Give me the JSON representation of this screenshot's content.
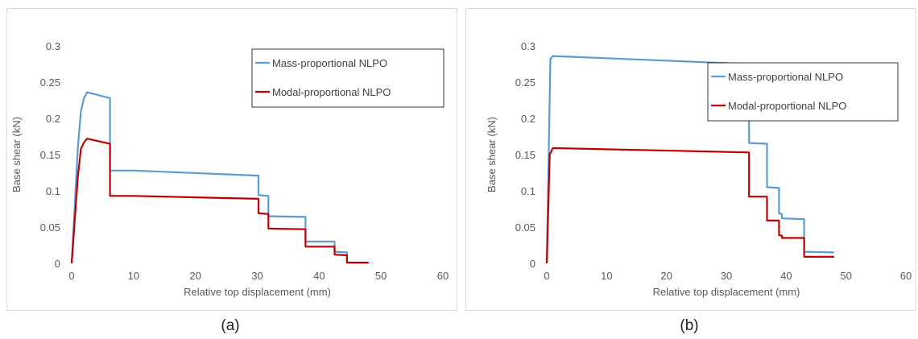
{
  "colors": {
    "mass": "#5b9bd5",
    "modal": "#c00000",
    "grid": "#d9d9d9",
    "border": "#d9d9d9"
  },
  "chart_data": [
    {
      "type": "line",
      "caption": "(a)",
      "xlabel": "Relative top displacement (mm)",
      "ylabel": "Base shear (kN)",
      "xlim": [
        0,
        60
      ],
      "ylim": [
        0,
        0.3
      ],
      "xticks": [
        "0",
        "10",
        "20",
        "30",
        "40",
        "50",
        "60"
      ],
      "yticks": [
        "0",
        "0.05",
        "0.1",
        "0.15",
        "0.2",
        "0.25",
        "0.3"
      ],
      "grid": false,
      "legend_position": "top-right",
      "series": [
        {
          "name": "Mass-proportional NLPO",
          "color": "#5b9bd5",
          "x": [
            0,
            1.0,
            1.5,
            2.0,
            2.5,
            6.2,
            6.2,
            10,
            30.2,
            30.2,
            31.8,
            31.8,
            37.8,
            37.8,
            42.5,
            42.5,
            44.5,
            44.5,
            48
          ],
          "y": [
            0,
            0.16,
            0.21,
            0.228,
            0.236,
            0.228,
            0.128,
            0.128,
            0.121,
            0.094,
            0.093,
            0.065,
            0.064,
            0.03,
            0.03,
            0.016,
            0.015,
            0.001,
            0.001
          ]
        },
        {
          "name": "Modal-proportional NLPO",
          "color": "#c00000",
          "x": [
            0,
            1.0,
            1.5,
            2.0,
            2.5,
            6.2,
            6.2,
            10,
            30.2,
            30.2,
            31.8,
            31.8,
            37.8,
            37.8,
            42.5,
            42.5,
            44.5,
            44.5,
            48
          ],
          "y": [
            0,
            0.12,
            0.158,
            0.167,
            0.172,
            0.165,
            0.093,
            0.093,
            0.089,
            0.069,
            0.068,
            0.048,
            0.047,
            0.023,
            0.023,
            0.012,
            0.011,
            0.001,
            0.001
          ]
        }
      ]
    },
    {
      "type": "line",
      "caption": "(b)",
      "xlabel": "Relative top displacement (mm)",
      "ylabel": "Base shear (kN)",
      "xlim": [
        0,
        60
      ],
      "ylim": [
        0,
        0.3
      ],
      "xticks": [
        "0",
        "10",
        "20",
        "30",
        "40",
        "50",
        "60"
      ],
      "yticks": [
        "0",
        "0.05",
        "0.1",
        "0.15",
        "0.2",
        "0.25",
        "0.3"
      ],
      "grid": false,
      "legend_position": "top-right",
      "series": [
        {
          "name": "Mass-proportional NLPO",
          "color": "#5b9bd5",
          "x": [
            0,
            0.6,
            1.0,
            33.8,
            33.8,
            36.8,
            36.8,
            38.8,
            38.8,
            39.3,
            39.3,
            43.0,
            43.0,
            48
          ],
          "y": [
            0,
            0.282,
            0.286,
            0.275,
            0.166,
            0.165,
            0.105,
            0.104,
            0.069,
            0.068,
            0.062,
            0.061,
            0.016,
            0.015
          ]
        },
        {
          "name": "Modal-proportional NLPO",
          "color": "#c00000",
          "x": [
            0,
            0.5,
            1.0,
            33.8,
            33.8,
            36.8,
            36.8,
            38.8,
            38.8,
            39.3,
            39.3,
            43.0,
            43.0,
            48
          ],
          "y": [
            0,
            0.15,
            0.159,
            0.153,
            0.092,
            0.092,
            0.059,
            0.059,
            0.039,
            0.038,
            0.035,
            0.035,
            0.009,
            0.009
          ]
        }
      ]
    }
  ]
}
